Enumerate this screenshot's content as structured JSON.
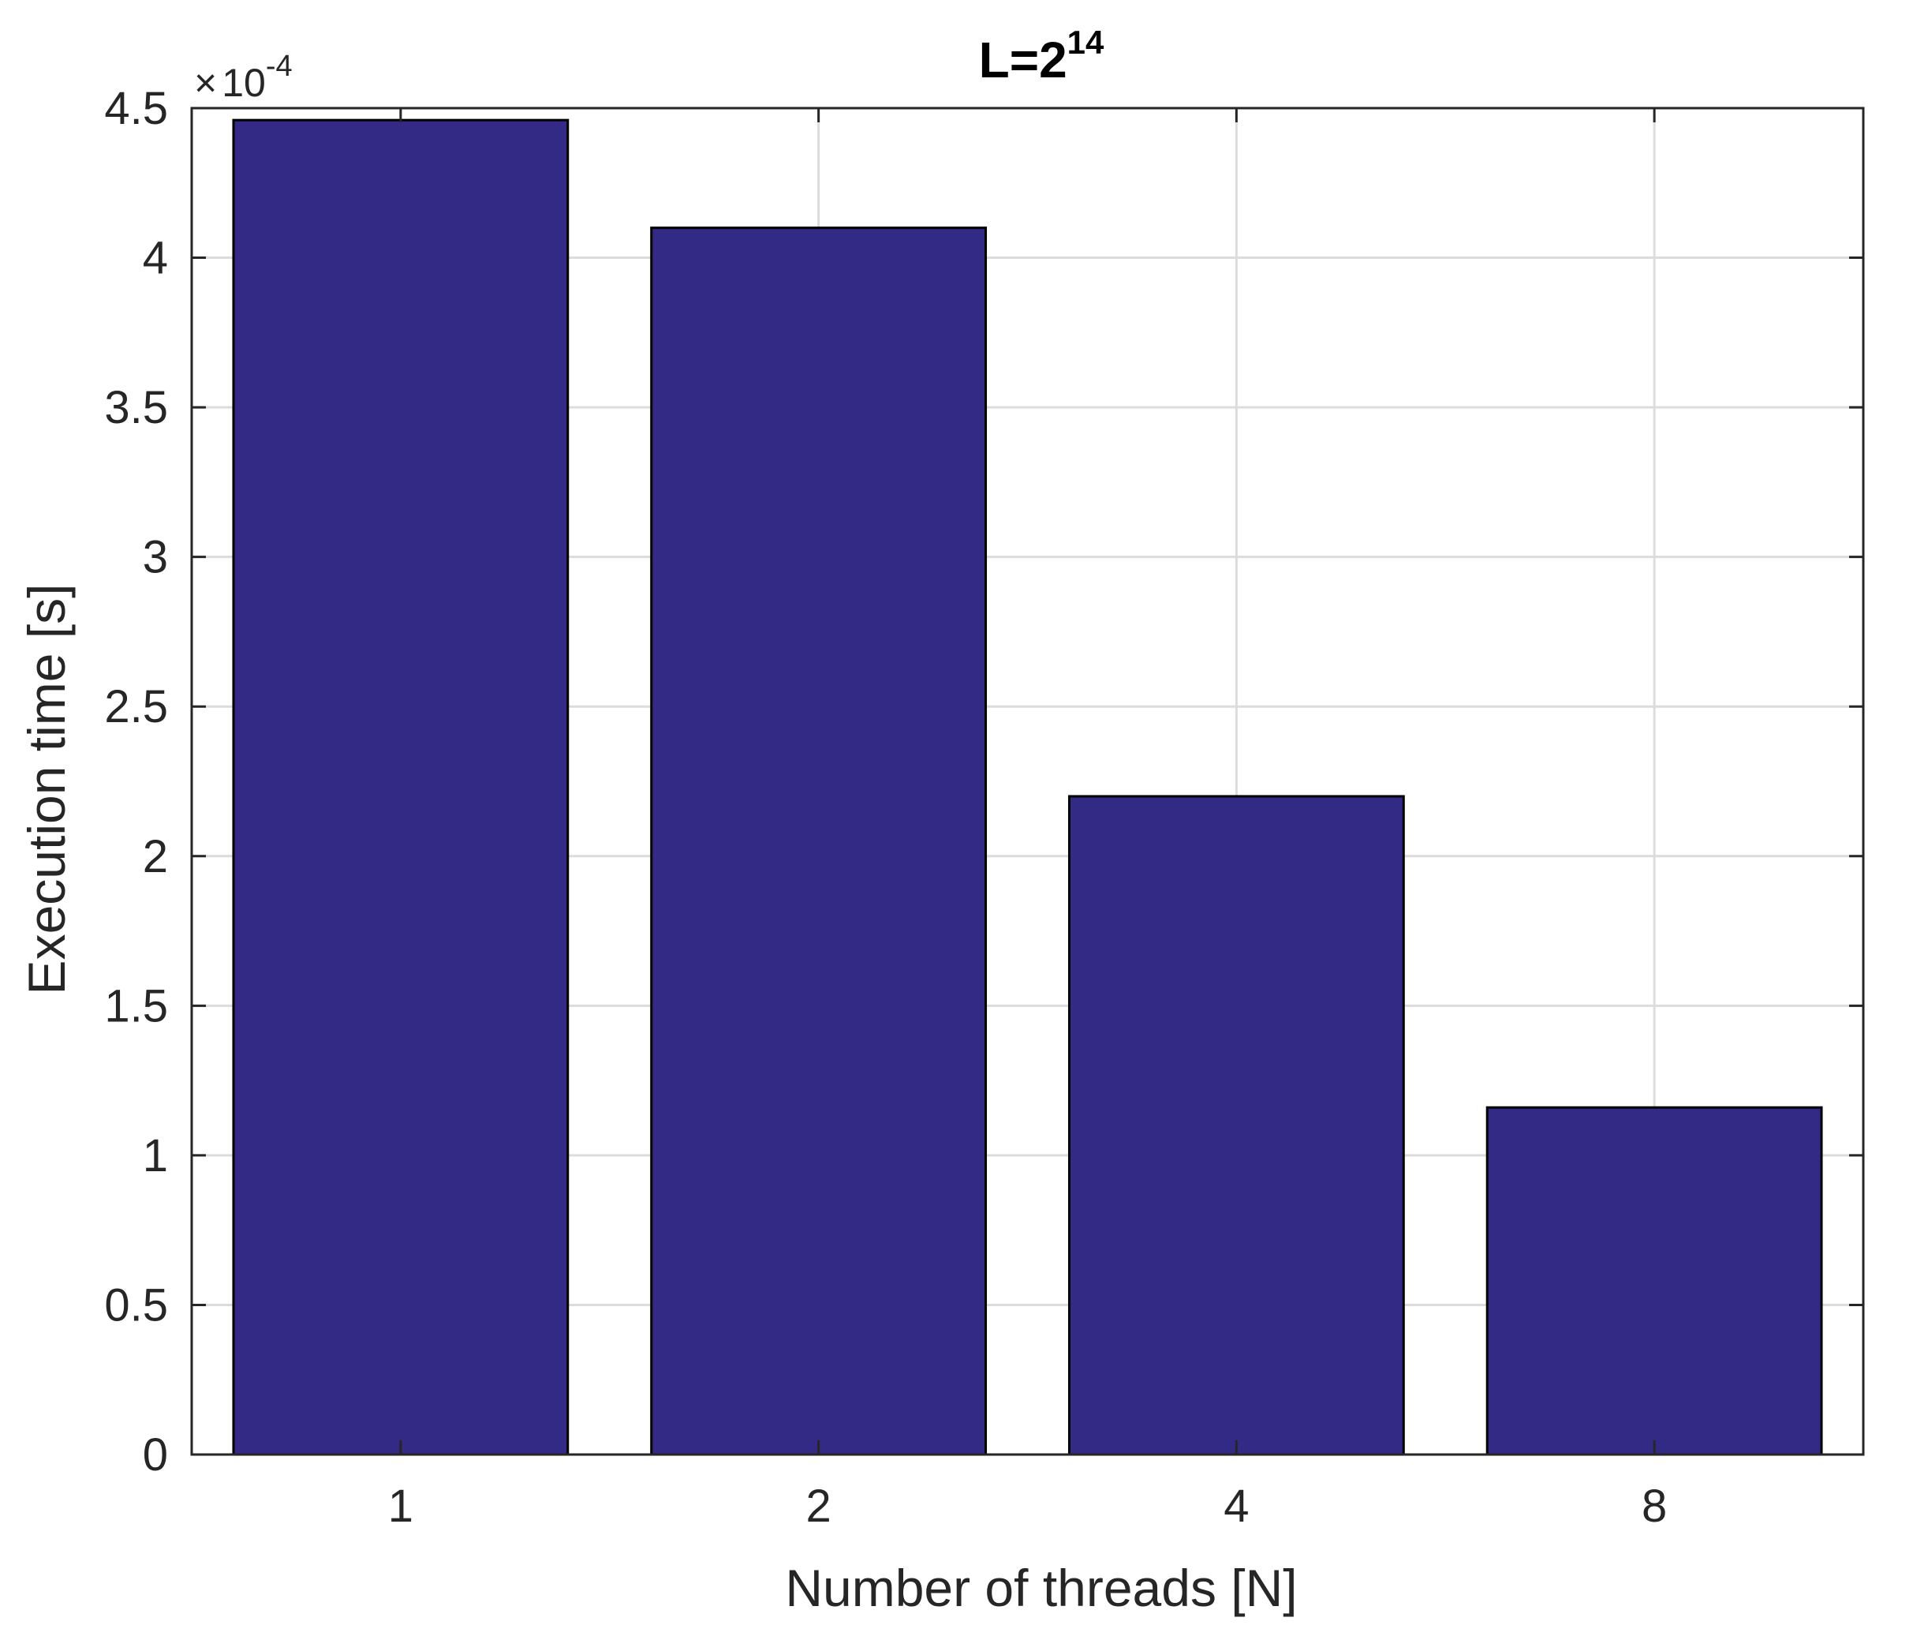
{
  "chart_data": {
    "type": "bar",
    "title": {
      "base": "L=2",
      "exponent": "14"
    },
    "xlabel": "Number of threads [N]",
    "ylabel": "Execution time [s]",
    "categories": [
      "1",
      "2",
      "4",
      "8"
    ],
    "values": [
      0.000446,
      0.00041,
      0.00022,
      0.000116
    ],
    "ylim": [
      0,
      0.00045
    ],
    "yticks": [
      0,
      5e-05,
      0.0001,
      0.00015,
      0.0002,
      0.00025,
      0.0003,
      0.00035,
      0.0004,
      0.00045
    ],
    "ytick_labels": [
      "0",
      "0.5",
      "1",
      "1.5",
      "2",
      "2.5",
      "3",
      "3.5",
      "4",
      "4.5"
    ],
    "y_multiplier": {
      "symbol": "×",
      "base": "10",
      "exponent": "-4",
      "scale": 0.0001
    },
    "grid": true,
    "colors": {
      "bar_fill": "#332a85",
      "bar_edge": "#000000",
      "grid": "#dcdcdc",
      "axes": "#262626",
      "text": "#262626",
      "title": "#000000"
    }
  }
}
